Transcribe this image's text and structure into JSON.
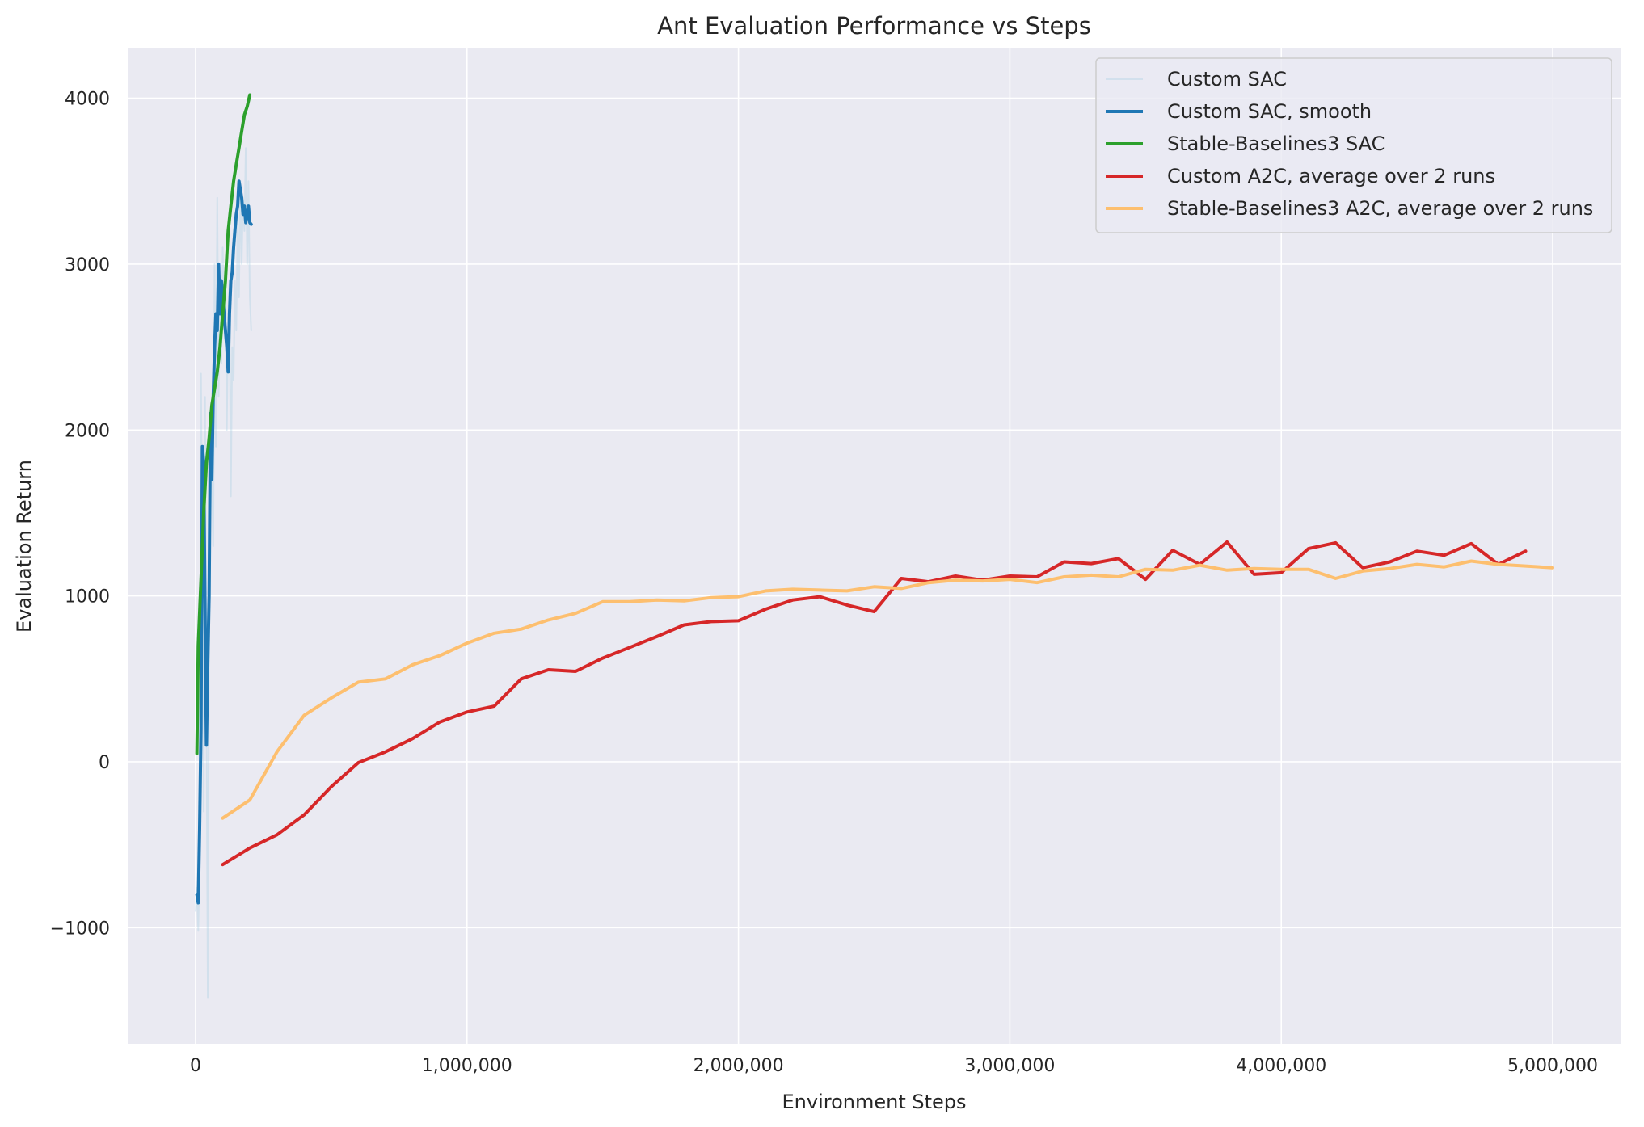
{
  "chart_data": {
    "type": "line",
    "title": "Ant Evaluation Performance vs Steps",
    "xlabel": "Environment Steps",
    "ylabel": "Evaluation Return",
    "xlim": [
      -250000,
      5250000
    ],
    "ylim": [
      -1700,
      4300
    ],
    "xticks": [
      0,
      1000000,
      2000000,
      3000000,
      4000000,
      5000000
    ],
    "xtick_labels": [
      "0",
      "1,000,000",
      "2,000,000",
      "3,000,000",
      "4,000,000",
      "5,000,000"
    ],
    "yticks": [
      -1000,
      0,
      1000,
      2000,
      3000,
      4000
    ],
    "ytick_labels": [
      "−1000",
      "0",
      "1000",
      "2000",
      "3000",
      "4000"
    ],
    "grid": true,
    "legend_position": "top-right",
    "series": [
      {
        "name": "Custom SAC",
        "color": "#a6cee3",
        "opacity": 0.35,
        "width": 2,
        "x": [
          0,
          5000,
          10000,
          15000,
          20000,
          25000,
          30000,
          35000,
          40000,
          45000,
          50000,
          55000,
          60000,
          65000,
          70000,
          75000,
          80000,
          85000,
          90000,
          95000,
          100000,
          105000,
          110000,
          115000,
          120000,
          125000,
          130000,
          135000,
          140000,
          145000,
          150000,
          155000,
          160000,
          165000,
          170000,
          175000,
          180000,
          185000,
          190000,
          195000,
          200000,
          205000
        ],
        "values": [
          -900,
          -760,
          -1020,
          -600,
          2340,
          1100,
          -300,
          2200,
          400,
          -1420,
          900,
          2100,
          1800,
          1300,
          3000,
          1900,
          3400,
          2200,
          2900,
          2400,
          3100,
          2700,
          2900,
          2000,
          2700,
          2900,
          1600,
          2500,
          2300,
          2900,
          2600,
          3300,
          2800,
          3500,
          3000,
          3400,
          3200,
          3700,
          3000,
          3500,
          2800,
          2600
        ]
      },
      {
        "name": "Custom SAC, smooth",
        "color": "#1f77b4",
        "opacity": 1,
        "width": 4,
        "x": [
          5000,
          10000,
          15000,
          20000,
          25000,
          30000,
          35000,
          40000,
          45000,
          50000,
          55000,
          60000,
          65000,
          70000,
          75000,
          80000,
          85000,
          90000,
          95000,
          100000,
          105000,
          110000,
          115000,
          120000,
          125000,
          130000,
          135000,
          140000,
          145000,
          150000,
          155000,
          160000,
          165000,
          170000,
          175000,
          180000,
          185000,
          190000,
          195000,
          200000,
          205000
        ],
        "values": [
          -800,
          -850,
          -400,
          200,
          1900,
          1800,
          900,
          100,
          600,
          1000,
          2100,
          1700,
          2200,
          2500,
          2700,
          2600,
          3000,
          2700,
          2900,
          2800,
          2700,
          2600,
          2500,
          2350,
          2700,
          2900,
          2950,
          3100,
          3200,
          3300,
          3350,
          3500,
          3450,
          3400,
          3300,
          3350,
          3250,
          3300,
          3350,
          3250,
          3240
        ]
      },
      {
        "name": "Stable-Baselines3 SAC",
        "color": "#2ca02c",
        "opacity": 1,
        "width": 4,
        "x": [
          5000,
          10000,
          20000,
          30000,
          40000,
          50000,
          60000,
          70000,
          80000,
          90000,
          100000,
          110000,
          120000,
          130000,
          140000,
          150000,
          160000,
          170000,
          180000,
          190000,
          200000
        ],
        "values": [
          50,
          700,
          1100,
          1500,
          1800,
          1950,
          2150,
          2250,
          2350,
          2500,
          2700,
          2900,
          3200,
          3350,
          3500,
          3600,
          3700,
          3800,
          3900,
          3950,
          4020
        ]
      },
      {
        "name": "Custom A2C, average over 2 runs",
        "color": "#d62728",
        "opacity": 1,
        "width": 4,
        "x": [
          100000,
          200000,
          300000,
          400000,
          500000,
          600000,
          700000,
          800000,
          900000,
          1000000,
          1100000,
          1200000,
          1300000,
          1400000,
          1500000,
          1600000,
          1700000,
          1800000,
          1900000,
          2000000,
          2100000,
          2200000,
          2300000,
          2400000,
          2500000,
          2600000,
          2700000,
          2800000,
          2900000,
          3000000,
          3100000,
          3200000,
          3300000,
          3400000,
          3500000,
          3600000,
          3700000,
          3800000,
          3900000,
          4000000,
          4100000,
          4200000,
          4300000,
          4400000,
          4500000,
          4600000,
          4700000,
          4800000,
          4900000
        ],
        "values": [
          -620,
          -520,
          -440,
          -320,
          -150,
          -5,
          60,
          140,
          240,
          300,
          335,
          500,
          555,
          545,
          625,
          690,
          755,
          825,
          845,
          850,
          920,
          975,
          995,
          945,
          905,
          1105,
          1085,
          1120,
          1095,
          1120,
          1115,
          1205,
          1195,
          1225,
          1100,
          1275,
          1190,
          1325,
          1130,
          1140,
          1285,
          1320,
          1170,
          1205,
          1270,
          1245,
          1315,
          1190,
          1270
        ]
      },
      {
        "name": "Stable-Baselines3 A2C, average over 2 runs",
        "color": "#fdbf6f",
        "opacity": 1,
        "width": 4,
        "x": [
          100000,
          200000,
          300000,
          400000,
          500000,
          600000,
          700000,
          800000,
          900000,
          1000000,
          1100000,
          1200000,
          1300000,
          1400000,
          1500000,
          1600000,
          1700000,
          1800000,
          1900000,
          2000000,
          2100000,
          2200000,
          2300000,
          2400000,
          2500000,
          2600000,
          2700000,
          2800000,
          2900000,
          3000000,
          3100000,
          3200000,
          3300000,
          3400000,
          3500000,
          3600000,
          3700000,
          3800000,
          3900000,
          4000000,
          4100000,
          4200000,
          4300000,
          4400000,
          4500000,
          4600000,
          4700000,
          4800000,
          4900000,
          5000000
        ],
        "values": [
          -340,
          -230,
          60,
          280,
          385,
          480,
          500,
          585,
          640,
          715,
          775,
          800,
          855,
          895,
          965,
          965,
          975,
          970,
          990,
          995,
          1030,
          1040,
          1035,
          1030,
          1055,
          1045,
          1080,
          1095,
          1090,
          1100,
          1080,
          1115,
          1125,
          1115,
          1160,
          1155,
          1185,
          1155,
          1165,
          1160,
          1160,
          1105,
          1150,
          1165,
          1190,
          1175,
          1210,
          1190,
          1180,
          1170
        ]
      }
    ]
  }
}
